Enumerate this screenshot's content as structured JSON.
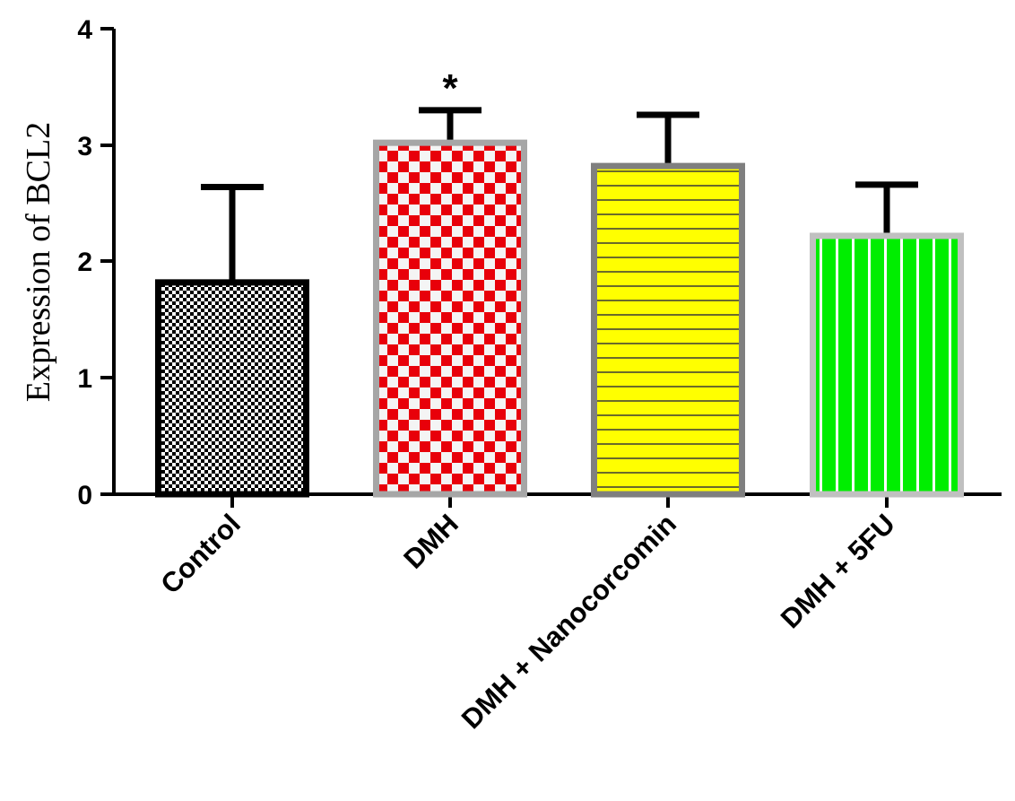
{
  "chart_data": {
    "type": "bar",
    "title": "",
    "xlabel": "",
    "ylabel": "Expression  of BCL2",
    "ylim": [
      0,
      4
    ],
    "yticks": [
      "0",
      "1",
      "2",
      "3",
      "4"
    ],
    "grid": false,
    "categories": [
      "Control",
      "DMH",
      "DMH + Nanocorcomin",
      "DMH + 5FU"
    ],
    "values": [
      1.82,
      3.02,
      2.82,
      2.22
    ],
    "error_upper": [
      2.64,
      3.3,
      3.26,
      2.66
    ],
    "annotations": [
      {
        "category": "DMH",
        "text": "*"
      }
    ],
    "colors": {
      "Control": {
        "fill": "#ffffff",
        "pattern": "#000000",
        "border": "#000000"
      },
      "DMH": {
        "fill": "#ffffff",
        "pattern": "#e8000a",
        "border": "#a6a6a6"
      },
      "DMH + Nanocorcomin": {
        "fill": "#ffff00",
        "pattern": "#6b6b2a",
        "border": "#7f7f7f"
      },
      "DMH + 5FU": {
        "fill": "#00ee00",
        "pattern": "#ffffff",
        "border": "#c0c0c0"
      }
    }
  }
}
